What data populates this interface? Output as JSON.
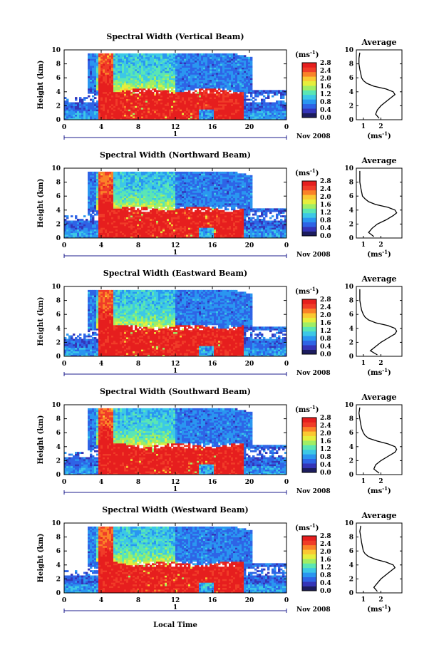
{
  "chart_data": {
    "type": "heatmap",
    "panels": [
      {
        "title": "Spectral Width (Vertical Beam)"
      },
      {
        "title": "Spectral Width (Northward Beam)"
      },
      {
        "title": "Spectral Width (Eastward Beam)"
      },
      {
        "title": "Spectral Width (Southward Beam)"
      },
      {
        "title": "Spectral Width (Westward Beam)"
      }
    ],
    "xlabel": "Local Time",
    "ylabel": "Height (km)",
    "date_label": "Nov 2008",
    "day_label": "1",
    "xticks": [
      "0",
      "4",
      "8",
      "12",
      "16",
      "20",
      "0"
    ],
    "xlim": [
      0,
      24
    ],
    "ylim": [
      0,
      10
    ],
    "yticks": [
      "0",
      "2",
      "4",
      "6",
      "8",
      "10"
    ],
    "colorbar": {
      "unit_label": "(ms",
      "unit_sup": "-1",
      "unit_close": ")",
      "range": [
        0,
        2.8
      ],
      "ticks": [
        "0.0",
        "0.4",
        "0.8",
        "1.2",
        "1.6",
        "2.0",
        "2.4",
        "2.8"
      ],
      "colors": [
        "#1c1c5e",
        "#3434b8",
        "#2e64e6",
        "#2a96f0",
        "#3cc8e6",
        "#5ae6b4",
        "#a0ee64",
        "#e6ee3c",
        "#fac832",
        "#fa8228",
        "#f03c28",
        "#e61e1e"
      ]
    },
    "average": {
      "title": "Average",
      "xlabel": "(ms",
      "xlabel_sup": "-1",
      "xlabel_close": ")",
      "xticks": [
        "1",
        "2"
      ],
      "yticks": [
        "0",
        "2",
        "4",
        "6",
        "8",
        "10"
      ],
      "profiles": [
        {
          "height": [
            0.2,
            0.8,
            1.4,
            2.0,
            2.6,
            3.2,
            3.6,
            4.0,
            4.4,
            4.8,
            5.2,
            5.6,
            6.0,
            6.6,
            7.2,
            8.0,
            8.8,
            9.6
          ],
          "width": [
            1.9,
            1.7,
            1.8,
            2.0,
            2.3,
            2.6,
            2.8,
            2.7,
            2.3,
            1.6,
            1.2,
            1.0,
            0.9,
            0.85,
            0.8,
            0.75,
            0.75,
            0.8
          ]
        },
        {
          "height": [
            0.2,
            0.8,
            1.4,
            2.0,
            2.6,
            3.2,
            3.6,
            4.0,
            4.4,
            4.8,
            5.2,
            5.6,
            6.0,
            6.6,
            7.2,
            8.0,
            8.8,
            9.6
          ],
          "width": [
            1.6,
            1.3,
            1.5,
            1.8,
            2.3,
            2.7,
            2.9,
            2.8,
            2.4,
            1.7,
            1.3,
            1.1,
            0.95,
            0.9,
            0.85,
            0.8,
            0.8,
            0.8
          ]
        },
        {
          "height": [
            0.2,
            0.8,
            1.4,
            2.0,
            2.6,
            3.2,
            3.6,
            4.0,
            4.4,
            4.8,
            5.2,
            5.6,
            6.0,
            6.6,
            7.2,
            8.0,
            8.8,
            9.6
          ],
          "width": [
            1.8,
            1.4,
            1.7,
            2.0,
            2.4,
            2.8,
            2.9,
            2.8,
            2.4,
            1.7,
            1.3,
            1.1,
            1.0,
            0.9,
            0.85,
            0.8,
            0.8,
            0.8
          ]
        },
        {
          "height": [
            0.2,
            0.8,
            1.4,
            2.0,
            2.6,
            3.2,
            3.6,
            4.0,
            4.4,
            4.8,
            5.2,
            5.6,
            6.0,
            6.6,
            7.2,
            8.0,
            8.8,
            9.6
          ],
          "width": [
            1.9,
            1.6,
            1.7,
            2.0,
            2.4,
            2.8,
            2.9,
            2.8,
            2.4,
            1.8,
            1.3,
            1.1,
            1.0,
            0.9,
            0.85,
            0.8,
            0.75,
            0.8
          ]
        },
        {
          "height": [
            0.2,
            0.8,
            1.4,
            2.0,
            2.6,
            3.2,
            3.6,
            4.0,
            4.4,
            4.8,
            5.2,
            5.6,
            6.0,
            6.6,
            7.2,
            8.0,
            8.8,
            9.6
          ],
          "width": [
            1.8,
            1.6,
            1.8,
            2.0,
            2.3,
            2.6,
            2.8,
            2.7,
            2.3,
            1.7,
            1.3,
            1.1,
            1.0,
            0.95,
            0.9,
            0.85,
            0.8,
            0.85
          ]
        }
      ]
    }
  }
}
